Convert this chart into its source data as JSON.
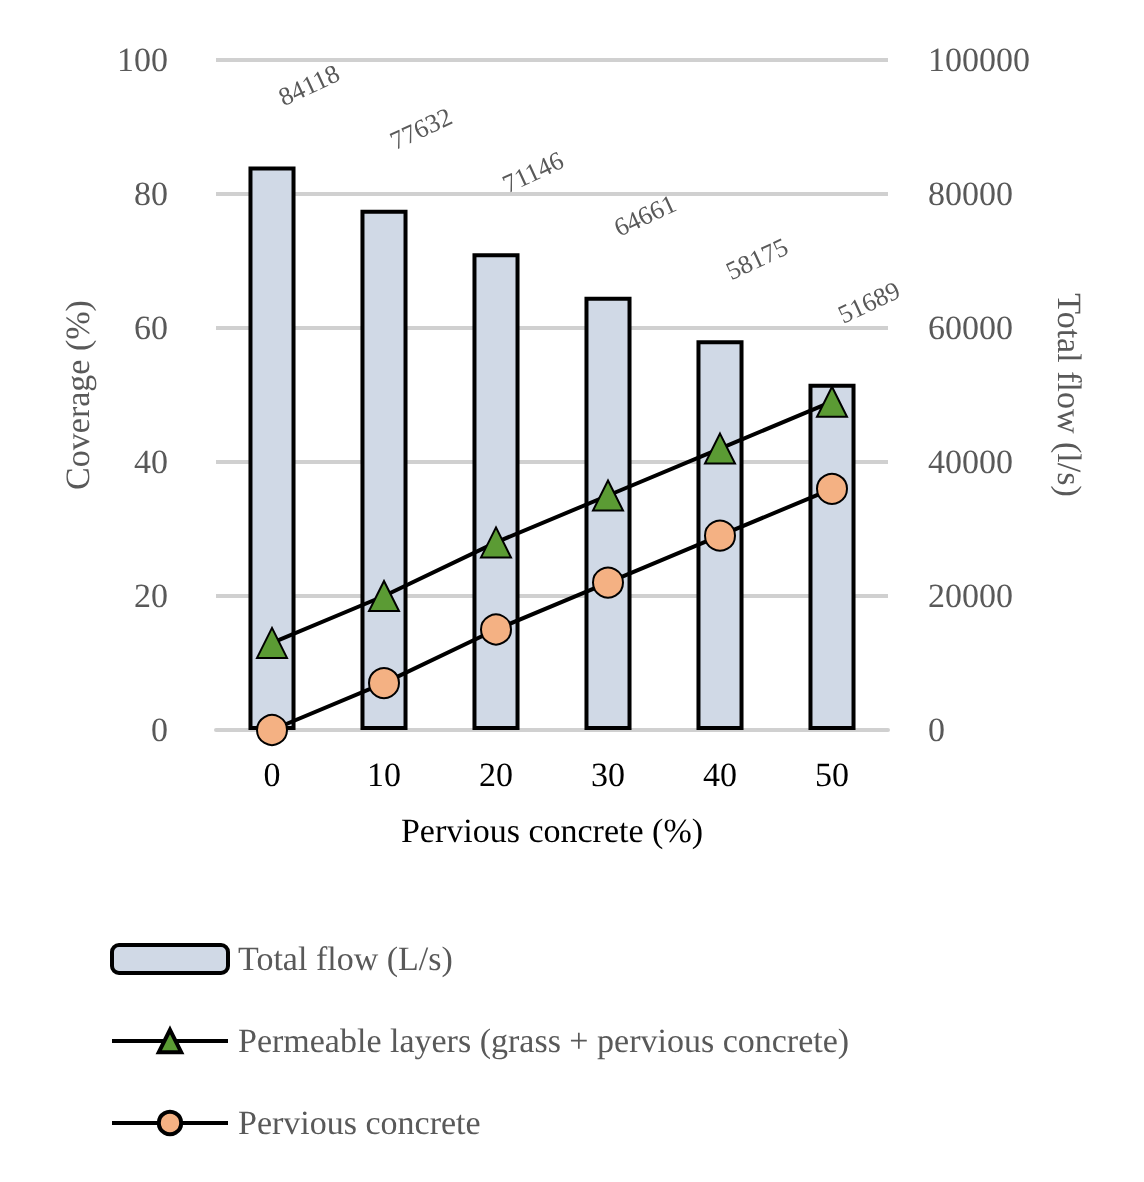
{
  "chart_data": {
    "type": "bar",
    "xlabel": "Pervious concrete (%)",
    "ylabel": "Coverage (%)",
    "y2label": "Total flow (l/s)",
    "categories": [
      "0",
      "10",
      "20",
      "30",
      "40",
      "50"
    ],
    "series": [
      {
        "name": "Total flow (L/s)",
        "axis": "y2",
        "color": "#d0d9e6",
        "values": [
          84118,
          77632,
          71146,
          64661,
          58175,
          51689
        ],
        "data_labels": true
      },
      {
        "name": "Permeable layers (grass + pervious concrete)",
        "type": "line",
        "marker": "triangle",
        "color": "#5b9b34",
        "values": [
          13,
          20,
          28,
          35,
          42,
          49
        ]
      },
      {
        "name": "Pervious concrete",
        "type": "line",
        "marker": "circle",
        "color": "#f4b183",
        "values": [
          0,
          7,
          15,
          22,
          29,
          36
        ]
      }
    ],
    "ylim": [
      0,
      100
    ],
    "yticks": [
      0,
      20,
      40,
      60,
      80,
      100
    ],
    "y2lim": [
      0,
      100000
    ],
    "y2ticks": [
      0,
      20000,
      40000,
      60000,
      80000,
      100000
    ],
    "grid": "y",
    "legend": "bottom left"
  }
}
